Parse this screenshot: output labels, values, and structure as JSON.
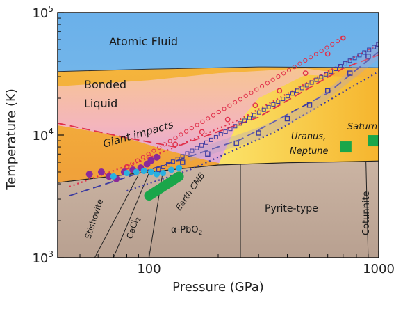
{
  "chart_data": {
    "type": "scatter",
    "xlabel": "Pressure (GPa)",
    "ylabel": "Temperature (K)",
    "xscale": "log",
    "yscale": "log",
    "xlim": [
      40,
      1000
    ],
    "ylim": [
      1000,
      100000
    ],
    "x_ticks": [
      {
        "value": 100,
        "label": "100"
      },
      {
        "value": 1000,
        "label": "1000"
      }
    ],
    "y_ticks": [
      {
        "value": 1000,
        "base": "10",
        "exp": "3"
      },
      {
        "value": 10000,
        "base": "10",
        "exp": "4"
      },
      {
        "value": 100000,
        "base": "10",
        "exp": "5"
      }
    ],
    "region_labels": {
      "atomic_fluid": "Atomic Fluid",
      "bonded_liquid_1": "Bonded",
      "bonded_liquid_2": "Liquid",
      "giant_impacts": "Giant impacts",
      "uranus_1": "Uranus,",
      "uranus_2": "Neptune",
      "saturn": "Saturn",
      "earth_cmb": "Earth CMB",
      "pyrite": "Pyrite-type",
      "cotunnite": "Cotunnite",
      "stishovite": "Stishovite",
      "cacl2_base": "CaCl",
      "cacl2_sub": "2",
      "apbo2_alpha": "α",
      "apbo2_base": "-PbO",
      "apbo2_sub": "2"
    },
    "colors": {
      "atomic_fluid": "#7ab8e6",
      "bonded_liquid": "#f3b03a",
      "solid": "#c2a998",
      "planet_markers": "#1aa64a",
      "earth_cmb": "#1aa64a",
      "red_series": "#e0304a",
      "blue_series": "#3a3aa0",
      "purple_markers": "#8a2a9a",
      "cyan_markers": "#2ab0e0"
    },
    "series": [
      {
        "marker": "red-open-circles",
        "points": [
          [
            80,
            5500
          ],
          [
            100,
            6600
          ],
          [
            130,
            8400
          ],
          [
            170,
            10600
          ],
          [
            220,
            13400
          ],
          [
            290,
            17500
          ],
          [
            370,
            23000
          ],
          [
            480,
            32000
          ],
          [
            600,
            46000
          ],
          [
            700,
            62000
          ]
        ]
      },
      {
        "marker": "blue-open-squares",
        "points": [
          [
            110,
            5200
          ],
          [
            140,
            6000
          ],
          [
            180,
            7000
          ],
          [
            240,
            8600
          ],
          [
            300,
            10400
          ],
          [
            400,
            13600
          ],
          [
            500,
            17600
          ],
          [
            600,
            23000
          ],
          [
            750,
            32000
          ],
          [
            900,
            44000
          ],
          [
            1000,
            55000
          ]
        ]
      },
      {
        "marker": "purple-filled-circles",
        "points": [
          [
            55,
            4800
          ],
          [
            62,
            5000
          ],
          [
            67,
            4600
          ],
          [
            72,
            4400
          ],
          [
            78,
            5000
          ],
          [
            85,
            5200
          ],
          [
            92,
            5400
          ],
          [
            98,
            5800
          ],
          [
            102,
            6200
          ],
          [
            108,
            6600
          ]
        ]
      },
      {
        "marker": "cyan-filled-circles",
        "points": [
          [
            70,
            4600
          ],
          [
            80,
            4900
          ],
          [
            88,
            5000
          ],
          [
            95,
            5100
          ],
          [
            102,
            5000
          ],
          [
            108,
            4800
          ],
          [
            115,
            4900
          ],
          [
            125,
            5200
          ],
          [
            135,
            5400
          ]
        ]
      },
      {
        "marker": "planet-squares",
        "points": [
          [
            720,
            8000
          ],
          [
            950,
            9000
          ]
        ]
      }
    ]
  }
}
